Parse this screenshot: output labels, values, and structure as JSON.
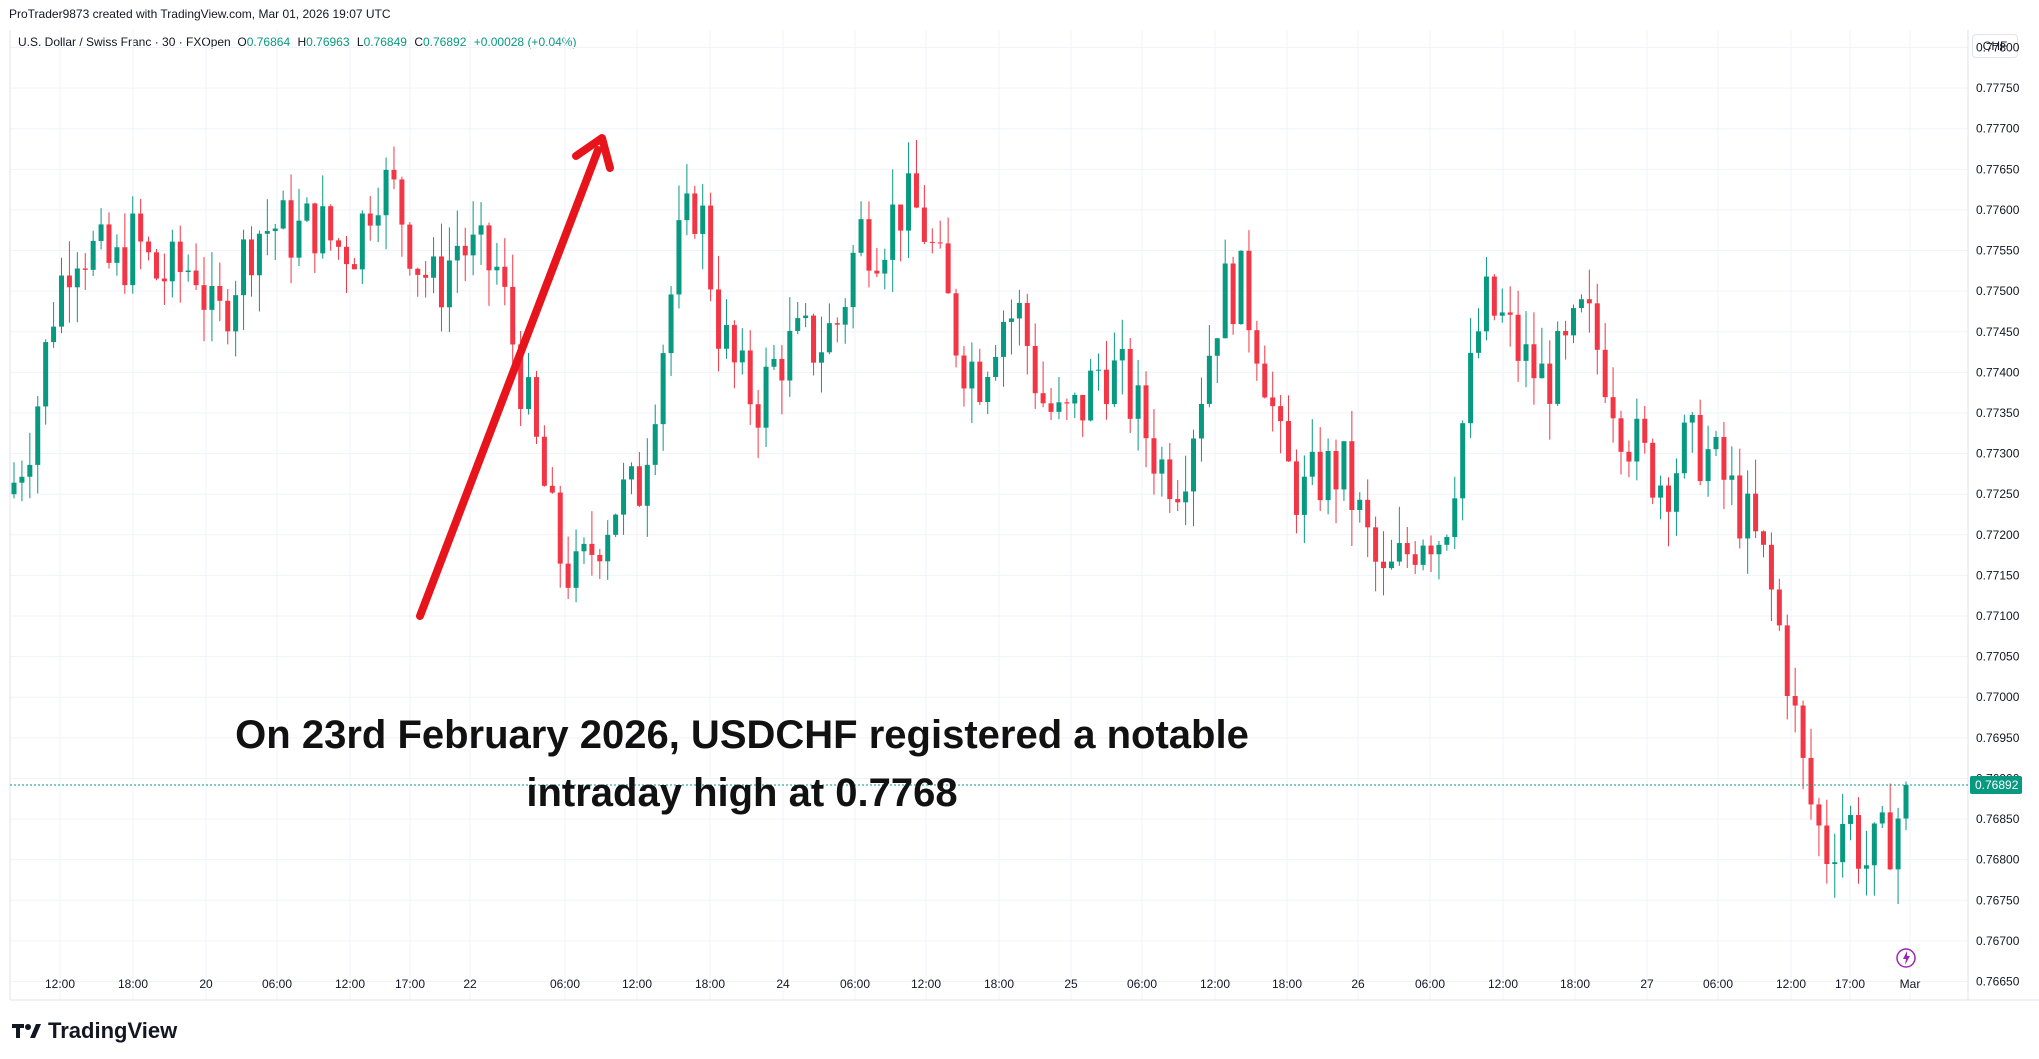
{
  "header": {
    "created_by": "ProTrader9873 created with TradingView.com, Mar 01, 2026 19:07 UTC"
  },
  "legend": {
    "symbol": "U.S. Dollar / Swiss Franc · 30 · FXOpen",
    "o_label": "O",
    "o_value": "0.76864",
    "h_label": "H",
    "h_value": "0.76963",
    "l_label": "L",
    "l_value": "0.76849",
    "c_label": "C",
    "c_value": "0.76892",
    "change": "+0.00028 (+0.04%)"
  },
  "currency_button": "CHF",
  "brand": {
    "name": "TradingView"
  },
  "colors": {
    "up": "#089981",
    "down": "#f23645",
    "arrow": "#e8141b",
    "grid": "#f0f3fa",
    "axis_text": "#131722",
    "price_line": "#089981"
  },
  "icons": [
    "lightning-icon",
    "tradingview-logo-icon"
  ],
  "chart_data": {
    "type": "candlestick",
    "symbol": "USDCHF",
    "interval": "30",
    "ylim": [
      0.7663,
      0.7779
    ],
    "y_ticks": [
      "0.77800",
      "0.77750",
      "0.77700",
      "0.77650",
      "0.77600",
      "0.77550",
      "0.77500",
      "0.77450",
      "0.77400",
      "0.77350",
      "0.77300",
      "0.77250",
      "0.77200",
      "0.77150",
      "0.77100",
      "0.77050",
      "0.77000",
      "0.76950",
      "0.76900",
      "0.76850",
      "0.76800",
      "0.76750",
      "0.76700",
      "0.76650"
    ],
    "x_ticks": [
      "12:00",
      "18:00",
      "20",
      "06:00",
      "12:00",
      "17:00",
      "22",
      "06:00",
      "12:00",
      "18:00",
      "24",
      "06:00",
      "12:00",
      "18:00",
      "25",
      "06:00",
      "12:00",
      "18:00",
      "26",
      "06:00",
      "12:00",
      "18:00",
      "27",
      "06:00",
      "12:00",
      "17:00",
      "Mar"
    ],
    "last_price": "0.76892",
    "grid": true,
    "anchors": [
      [
        0.7725,
        0.7728
      ],
      [
        0.773,
        0.7738
      ],
      [
        0.7745,
        0.7752
      ],
      [
        0.7753,
        0.776
      ],
      [
        0.7751,
        0.7758
      ],
      [
        0.7745,
        0.776
      ],
      [
        0.7755,
        0.7758
      ],
      [
        0.7752,
        0.7752
      ],
      [
        0.775,
        0.7754
      ],
      [
        0.7748,
        0.7759
      ],
      [
        0.7746,
        0.7744
      ],
      [
        0.7748,
        0.7756
      ],
      [
        0.7755,
        0.776
      ],
      [
        0.776,
        0.7756
      ],
      [
        0.7752,
        0.7762
      ],
      [
        0.776,
        0.7757
      ],
      [
        0.7756,
        0.7755
      ],
      [
        0.775,
        0.7762
      ],
      [
        0.7768,
        0.776
      ],
      [
        0.7758,
        0.7765
      ],
      [
        0.776,
        0.7748
      ],
      [
        0.774,
        0.776
      ],
      [
        0.776,
        0.7752
      ],
      [
        0.775,
        0.7758
      ],
      [
        0.7755,
        0.775
      ],
      [
        0.7738,
        0.7745
      ],
      [
        0.7735,
        0.7725
      ],
      [
        0.7718,
        0.7718
      ],
      [
        0.7713,
        0.7715
      ],
      [
        0.7715,
        0.7725
      ],
      [
        0.7724,
        0.7725
      ],
      [
        0.772,
        0.773
      ],
      [
        0.7735,
        0.7745
      ],
      [
        0.775,
        0.776
      ],
      [
        0.7766,
        0.7758
      ],
      [
        0.775,
        0.7742
      ],
      [
        0.774,
        0.7738
      ],
      [
        0.7735,
        0.7738
      ],
      [
        0.774,
        0.7744
      ],
      [
        0.7745,
        0.7742
      ],
      [
        0.7742,
        0.7745
      ],
      [
        0.7745,
        0.7748
      ],
      [
        0.7755,
        0.776
      ],
      [
        0.776,
        0.7753
      ],
      [
        0.7756,
        0.7765
      ],
      [
        0.7762,
        0.7757
      ],
      [
        0.7754,
        0.775
      ],
      [
        0.7745,
        0.774
      ],
      [
        0.7738,
        0.7742
      ],
      [
        0.7746,
        0.7748
      ],
      [
        0.7749,
        0.7745
      ],
      [
        0.7738,
        0.7736
      ],
      [
        0.7734,
        0.7733
      ],
      [
        0.7733,
        0.7738
      ],
      [
        0.774,
        0.7742
      ],
      [
        0.7738,
        0.774
      ],
      [
        0.7735,
        0.7733
      ],
      [
        0.773,
        0.7727
      ],
      [
        0.7725,
        0.773
      ],
      [
        0.7735,
        0.7742
      ],
      [
        0.7745,
        0.7755
      ],
      [
        0.7753,
        0.7748
      ],
      [
        0.7745,
        0.774
      ],
      [
        0.773,
        0.7728
      ],
      [
        0.7724,
        0.7725
      ],
      [
        0.7727,
        0.7728
      ],
      [
        0.773,
        0.7726
      ],
      [
        0.7722,
        0.772
      ],
      [
        0.7715,
        0.7712
      ],
      [
        0.7714,
        0.772
      ],
      [
        0.7722,
        0.772
      ],
      [
        0.7718,
        0.7722
      ],
      [
        0.773,
        0.7738
      ],
      [
        0.7745,
        0.7752
      ],
      [
        0.775,
        0.7742
      ],
      [
        0.7738,
        0.7745
      ],
      [
        0.774,
        0.7738
      ],
      [
        0.7735,
        0.7748
      ],
      [
        0.775,
        0.7744
      ],
      [
        0.7742,
        0.774
      ],
      [
        0.7735,
        0.7732
      ],
      [
        0.773,
        0.7728
      ],
      [
        0.7726,
        0.7727
      ],
      [
        0.7729,
        0.7732
      ],
      [
        0.7731,
        0.773
      ],
      [
        0.7728,
        0.7725
      ],
      [
        0.7724,
        0.772
      ],
      [
        0.7716,
        0.7716
      ],
      [
        0.7708,
        0.7702
      ],
      [
        0.7695,
        0.7683
      ],
      [
        0.7677,
        0.7685
      ],
      [
        0.7688,
        0.7684
      ],
      [
        0.768,
        0.7679
      ],
      [
        0.768,
        0.7684
      ],
      [
        0.7686,
        0.7689
      ]
    ]
  },
  "annotation": {
    "line1": "On 23rd February 2026, USDCHF registered a notable",
    "line2": "intraday high at 0.7768"
  }
}
